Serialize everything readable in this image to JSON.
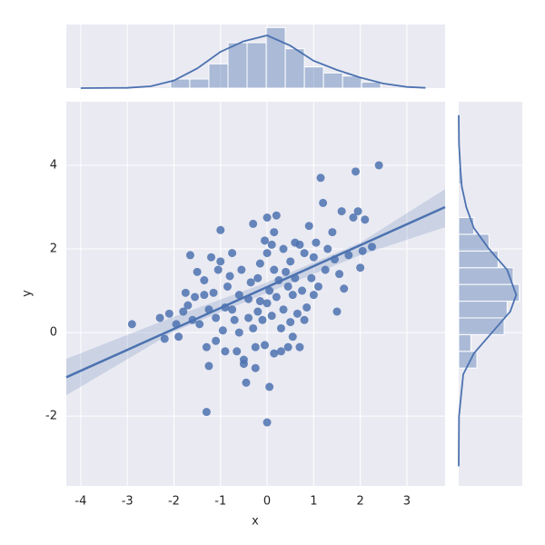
{
  "chart_data": {
    "type": "scatter",
    "xlabel": "x",
    "ylabel": "y",
    "color": "#4c72b0",
    "grid": true,
    "xlim": [
      -4.31,
      3.82
    ],
    "ylim": [
      -3.67,
      5.52
    ],
    "xticks": [
      -4,
      -3,
      -2,
      -1,
      0,
      1,
      2,
      3
    ],
    "yticks": [
      -2,
      0,
      2,
      4
    ],
    "x": [
      -2.9,
      -2.2,
      -2.1,
      -1.9,
      -1.95,
      -1.8,
      -1.75,
      -1.7,
      -1.65,
      -1.5,
      -1.55,
      -1.45,
      -1.35,
      -1.3,
      -1.25,
      -1.3,
      -1.2,
      -1.25,
      -1.15,
      -1.1,
      -1.05,
      -1.0,
      -1.0,
      -0.95,
      -0.9,
      -0.85,
      -0.8,
      -0.75,
      -0.7,
      -0.65,
      -0.6,
      -0.55,
      -0.5,
      -0.5,
      -0.45,
      -0.4,
      -0.35,
      -0.3,
      -0.3,
      -0.25,
      -0.2,
      -0.2,
      -0.15,
      -0.1,
      -0.05,
      -0.05,
      0.0,
      0.0,
      0.0,
      0.0,
      0.05,
      0.05,
      0.1,
      0.1,
      0.15,
      0.15,
      0.2,
      0.2,
      0.25,
      0.3,
      0.35,
      0.35,
      0.4,
      0.45,
      0.5,
      0.5,
      0.55,
      0.6,
      0.6,
      0.65,
      0.7,
      0.75,
      0.8,
      0.85,
      0.9,
      0.95,
      1.0,
      1.05,
      1.1,
      1.15,
      1.2,
      1.25,
      1.3,
      1.4,
      1.5,
      1.55,
      1.6,
      1.65,
      1.75,
      1.85,
      1.9,
      1.95,
      2.0,
      2.05,
      2.1,
      2.25,
      2.4,
      -0.6,
      -0.9,
      -1.1,
      -0.4,
      0.3,
      0.8,
      -1.35,
      -0.15,
      0.45,
      -0.75,
      1.0,
      -2.3,
      0.55,
      -0.25,
      1.45,
      -1.6,
      0.7,
      0.15
    ],
    "y": [
      0.2,
      -0.15,
      0.45,
      -0.1,
      0.2,
      0.5,
      0.95,
      0.65,
      1.85,
      1.45,
      0.85,
      0.2,
      1.25,
      -0.35,
      -0.8,
      -1.9,
      1.8,
      0.55,
      0.95,
      0.35,
      1.5,
      1.7,
      2.45,
      0.05,
      0.6,
      1.1,
      1.35,
      1.9,
      0.3,
      -0.45,
      0.9,
      1.5,
      -0.65,
      -0.75,
      -1.2,
      0.8,
      1.2,
      2.6,
      0.1,
      -0.85,
      0.5,
      1.3,
      1.65,
      0.3,
      2.2,
      -0.3,
      2.75,
      1.9,
      0.7,
      -2.15,
      1.0,
      -1.3,
      2.1,
      0.4,
      1.5,
      -0.5,
      2.8,
      0.85,
      1.25,
      0.1,
      2.0,
      0.55,
      1.45,
      -0.35,
      1.7,
      0.25,
      0.9,
      2.15,
      1.3,
      0.45,
      -0.35,
      1.0,
      1.9,
      0.6,
      2.55,
      1.3,
      0.9,
      2.15,
      1.1,
      3.7,
      3.1,
      1.5,
      2.0,
      2.4,
      0.5,
      1.4,
      2.9,
      1.05,
      1.85,
      2.75,
      3.85,
      2.9,
      1.55,
      1.95,
      2.7,
      2.05,
      4.0,
      0.0,
      -0.45,
      -0.2,
      0.35,
      -0.45,
      0.3,
      0.9,
      0.75,
      1.1,
      0.55,
      1.8,
      0.35,
      -0.1,
      -0.35,
      1.75,
      0.3,
      2.1,
      2.4
    ],
    "regression": {
      "x": [
        -4.31,
        3.82
      ],
      "y": [
        -1.07,
        3.0
      ]
    },
    "ci": {
      "x": [
        -4.31,
        -2,
        0,
        2,
        3.82
      ],
      "lower": [
        -1.5,
        0.02,
        0.95,
        1.85,
        2.52
      ],
      "upper": [
        -0.63,
        0.38,
        1.2,
        2.15,
        3.43
      ]
    },
    "x_hist": {
      "countlim": [
        0,
        21
      ],
      "bins": [
        -2.07,
        -1.66,
        -1.25,
        -0.84,
        -0.43,
        -0.02,
        0.39,
        0.8,
        1.21,
        1.62,
        2.03,
        2.44
      ],
      "counts": [
        3,
        3,
        8,
        15,
        15,
        20,
        13,
        7,
        5,
        4,
        2
      ],
      "kde": {
        "x": [
          -4,
          -3,
          -2.5,
          -2,
          -1.5,
          -1,
          -0.5,
          0,
          0.5,
          1,
          1.5,
          2,
          2.5,
          3,
          3.4
        ],
        "y": [
          0,
          0.1,
          0.6,
          2.5,
          6.5,
          12,
          15.5,
          17.4,
          14,
          9,
          6,
          3.5,
          1.5,
          0.4,
          0.1
        ]
      }
    },
    "y_hist": {
      "countlim": [
        0,
        21
      ],
      "bins": [
        -0.85,
        -0.45,
        -0.05,
        0.35,
        0.75,
        1.15,
        1.55,
        1.95,
        2.35,
        2.75,
        3.15,
        3.55,
        3.95
      ],
      "counts": [
        6,
        4,
        15,
        16,
        20,
        18,
        13,
        10,
        5,
        0,
        0,
        1
      ],
      "kde": {
        "x": [
          -3.2,
          -2,
          -1,
          -0.5,
          0,
          0.5,
          0.9,
          1.5,
          2,
          2.5,
          3,
          3.5,
          4,
          4.5,
          5.2
        ],
        "y": [
          0,
          0.1,
          1.5,
          5,
          11,
          17,
          19,
          16,
          10,
          5,
          2.5,
          1,
          0.5,
          0.1,
          0
        ]
      }
    }
  }
}
